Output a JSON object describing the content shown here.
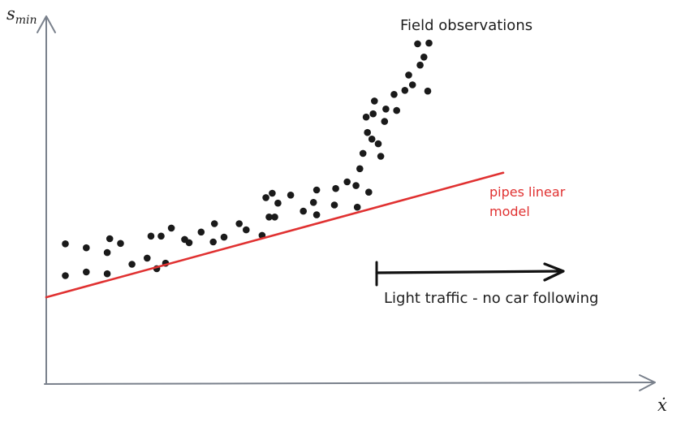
{
  "axes": {
    "y_label_main": "s",
    "y_label_sub": "min",
    "x_label": "ẋ",
    "axis_color": "#7a818c"
  },
  "annotations": {
    "field_observations": "Field observations",
    "model_line1": "pipes linear",
    "model_line2": "model",
    "traffic_label": "Light traffic - no car following"
  },
  "colors": {
    "model": "#e03131",
    "points": "#1a1a1a",
    "arrow": "#111111",
    "text": "#1e1e1e"
  },
  "chart_data": {
    "type": "scatter",
    "xlim": [
      0,
      100
    ],
    "ylim": [
      0,
      100
    ],
    "grid": false,
    "series": [
      {
        "name": "Field observations",
        "points": [
          [
            3.0,
            38.3
          ],
          [
            3.0,
            29.6
          ],
          [
            6.3,
            37.2
          ],
          [
            6.3,
            30.6
          ],
          [
            9.6,
            30.1
          ],
          [
            9.6,
            35.9
          ],
          [
            10.0,
            39.7
          ],
          [
            11.7,
            38.4
          ],
          [
            13.5,
            32.7
          ],
          [
            15.9,
            34.4
          ],
          [
            16.5,
            40.4
          ],
          [
            17.4,
            31.5
          ],
          [
            18.1,
            40.4
          ],
          [
            18.8,
            33.0
          ],
          [
            19.7,
            42.6
          ],
          [
            21.8,
            39.5
          ],
          [
            22.5,
            38.6
          ],
          [
            24.4,
            41.5
          ],
          [
            26.3,
            38.8
          ],
          [
            26.5,
            43.8
          ],
          [
            28.0,
            40.1
          ],
          [
            30.4,
            43.8
          ],
          [
            31.5,
            42.1
          ],
          [
            34.0,
            40.6
          ],
          [
            34.6,
            50.9
          ],
          [
            35.1,
            45.6
          ],
          [
            35.6,
            52.1
          ],
          [
            36.0,
            45.6
          ],
          [
            36.5,
            49.4
          ],
          [
            38.5,
            51.6
          ],
          [
            40.5,
            47.2
          ],
          [
            42.1,
            49.6
          ],
          [
            42.6,
            46.2
          ],
          [
            42.6,
            53.0
          ],
          [
            45.4,
            48.9
          ],
          [
            45.6,
            53.4
          ],
          [
            47.4,
            55.2
          ],
          [
            48.8,
            54.2
          ],
          [
            49.0,
            48.3
          ],
          [
            49.4,
            58.8
          ],
          [
            49.9,
            63.0
          ],
          [
            50.4,
            72.9
          ],
          [
            50.6,
            68.7
          ],
          [
            50.8,
            52.4
          ],
          [
            51.3,
            66.9
          ],
          [
            51.5,
            73.8
          ],
          [
            51.7,
            77.3
          ],
          [
            52.3,
            65.6
          ],
          [
            52.7,
            62.2
          ],
          [
            53.3,
            71.7
          ],
          [
            53.5,
            75.1
          ],
          [
            54.8,
            79.1
          ],
          [
            55.2,
            74.7
          ],
          [
            56.5,
            80.2
          ],
          [
            57.1,
            84.4
          ],
          [
            57.7,
            81.7
          ],
          [
            58.5,
            92.9
          ],
          [
            58.9,
            87.1
          ],
          [
            59.5,
            89.3
          ],
          [
            60.1,
            80.0
          ],
          [
            60.3,
            93.1
          ]
        ]
      },
      {
        "name": "pipes linear model",
        "points": [
          [
            0,
            23.7
          ],
          [
            72,
            57.7
          ]
        ]
      }
    ],
    "ranges": [
      {
        "label": "Light traffic - no car following",
        "from": 51.0,
        "to": 81.5,
        "y": 30.4
      }
    ]
  }
}
